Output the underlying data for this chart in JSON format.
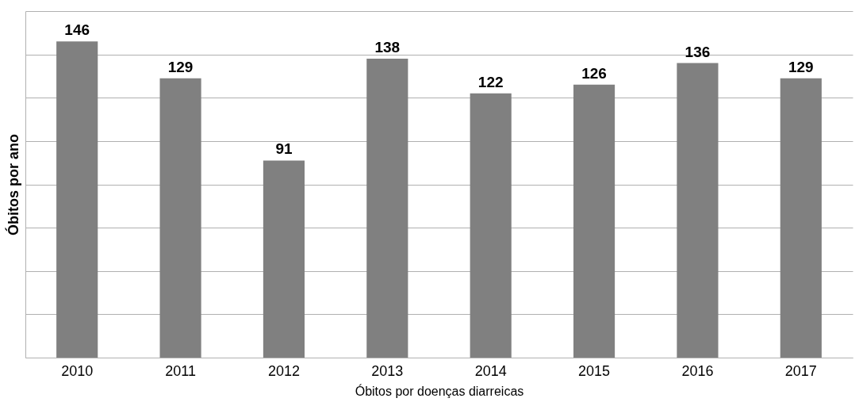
{
  "chart_data": {
    "type": "bar",
    "xlabel": "Óbitos por doenças diarreicas",
    "ylabel": "Óbitos por ano",
    "categories": [
      "2010",
      "2011",
      "2012",
      "2013",
      "2014",
      "2015",
      "2016",
      "2017"
    ],
    "values": [
      146,
      129,
      91,
      138,
      122,
      126,
      136,
      129
    ],
    "color": "#808080",
    "ylim": [
      0,
      160
    ],
    "yticks": [
      {
        "value": 0,
        "label": null
      },
      {
        "value": 20,
        "label": null
      },
      {
        "value": 40,
        "label": null
      },
      {
        "value": 60,
        "label": null
      },
      {
        "value": 80,
        "label": null
      },
      {
        "value": 100,
        "label": null
      },
      {
        "value": 120,
        "label": null
      },
      {
        "value": 140,
        "label": null
      },
      {
        "value": 160,
        "label": null
      }
    ],
    "tick_labels": "x",
    "grid": "y",
    "data_labels": true
  }
}
